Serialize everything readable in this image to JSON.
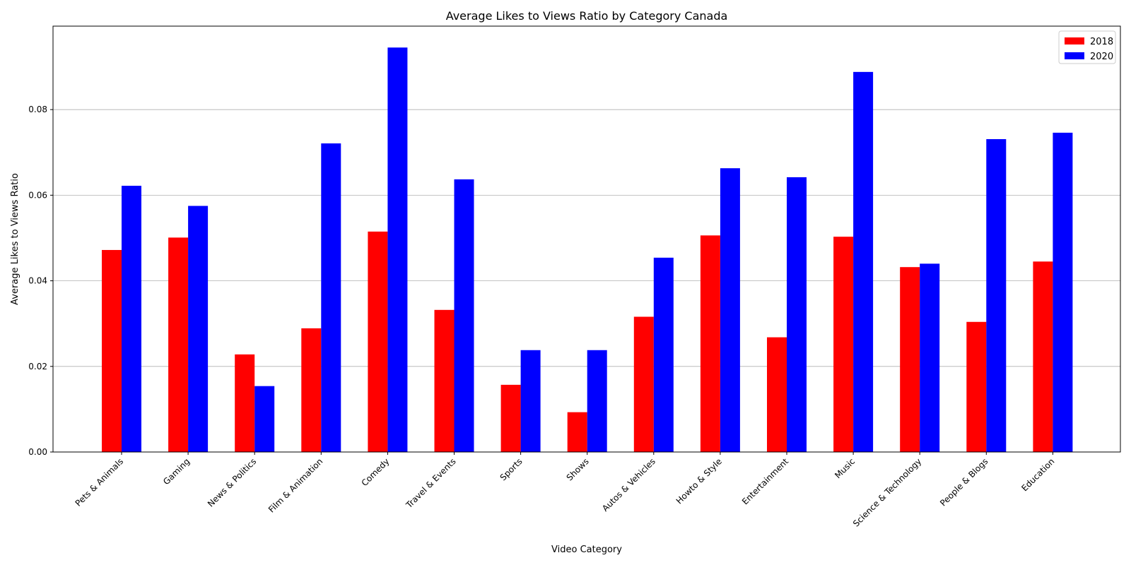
{
  "chart_data": {
    "type": "bar",
    "title": "Average Likes to Views Ratio by Category Canada",
    "xlabel": "Video Category",
    "ylabel": "Average Likes to Views Ratio",
    "categories": [
      "Pets & Animals",
      "Gaming",
      "News & Politics",
      "Film & Animation",
      "Comedy",
      "Travel & Events",
      "Sports",
      "Shows",
      "Autos & Vehicles",
      "Howto & Style",
      "Entertainment",
      "Music",
      "Science & Technology",
      "People & Blogs",
      "Education"
    ],
    "series": [
      {
        "name": "2018",
        "color": "#ff0000",
        "values": [
          0.0472,
          0.0501,
          0.0228,
          0.0289,
          0.0515,
          0.0332,
          0.0157,
          0.0093,
          0.0316,
          0.0506,
          0.0268,
          0.0503,
          0.0432,
          0.0304,
          0.0445
        ]
      },
      {
        "name": "2020",
        "color": "#0000ff",
        "values": [
          0.0622,
          0.0575,
          0.0154,
          0.0721,
          0.0945,
          0.0637,
          0.0238,
          0.0238,
          0.0454,
          0.0663,
          0.0642,
          0.0888,
          0.044,
          0.0731,
          0.0746
        ]
      }
    ],
    "ylim": [
      0,
      0.0995
    ],
    "yticks": [
      0.0,
      0.02,
      0.04,
      0.06,
      0.08
    ],
    "ytick_labels": [
      "0.00",
      "0.02",
      "0.04",
      "0.06",
      "0.08"
    ],
    "grid": "y",
    "legend_position": "top-right"
  }
}
